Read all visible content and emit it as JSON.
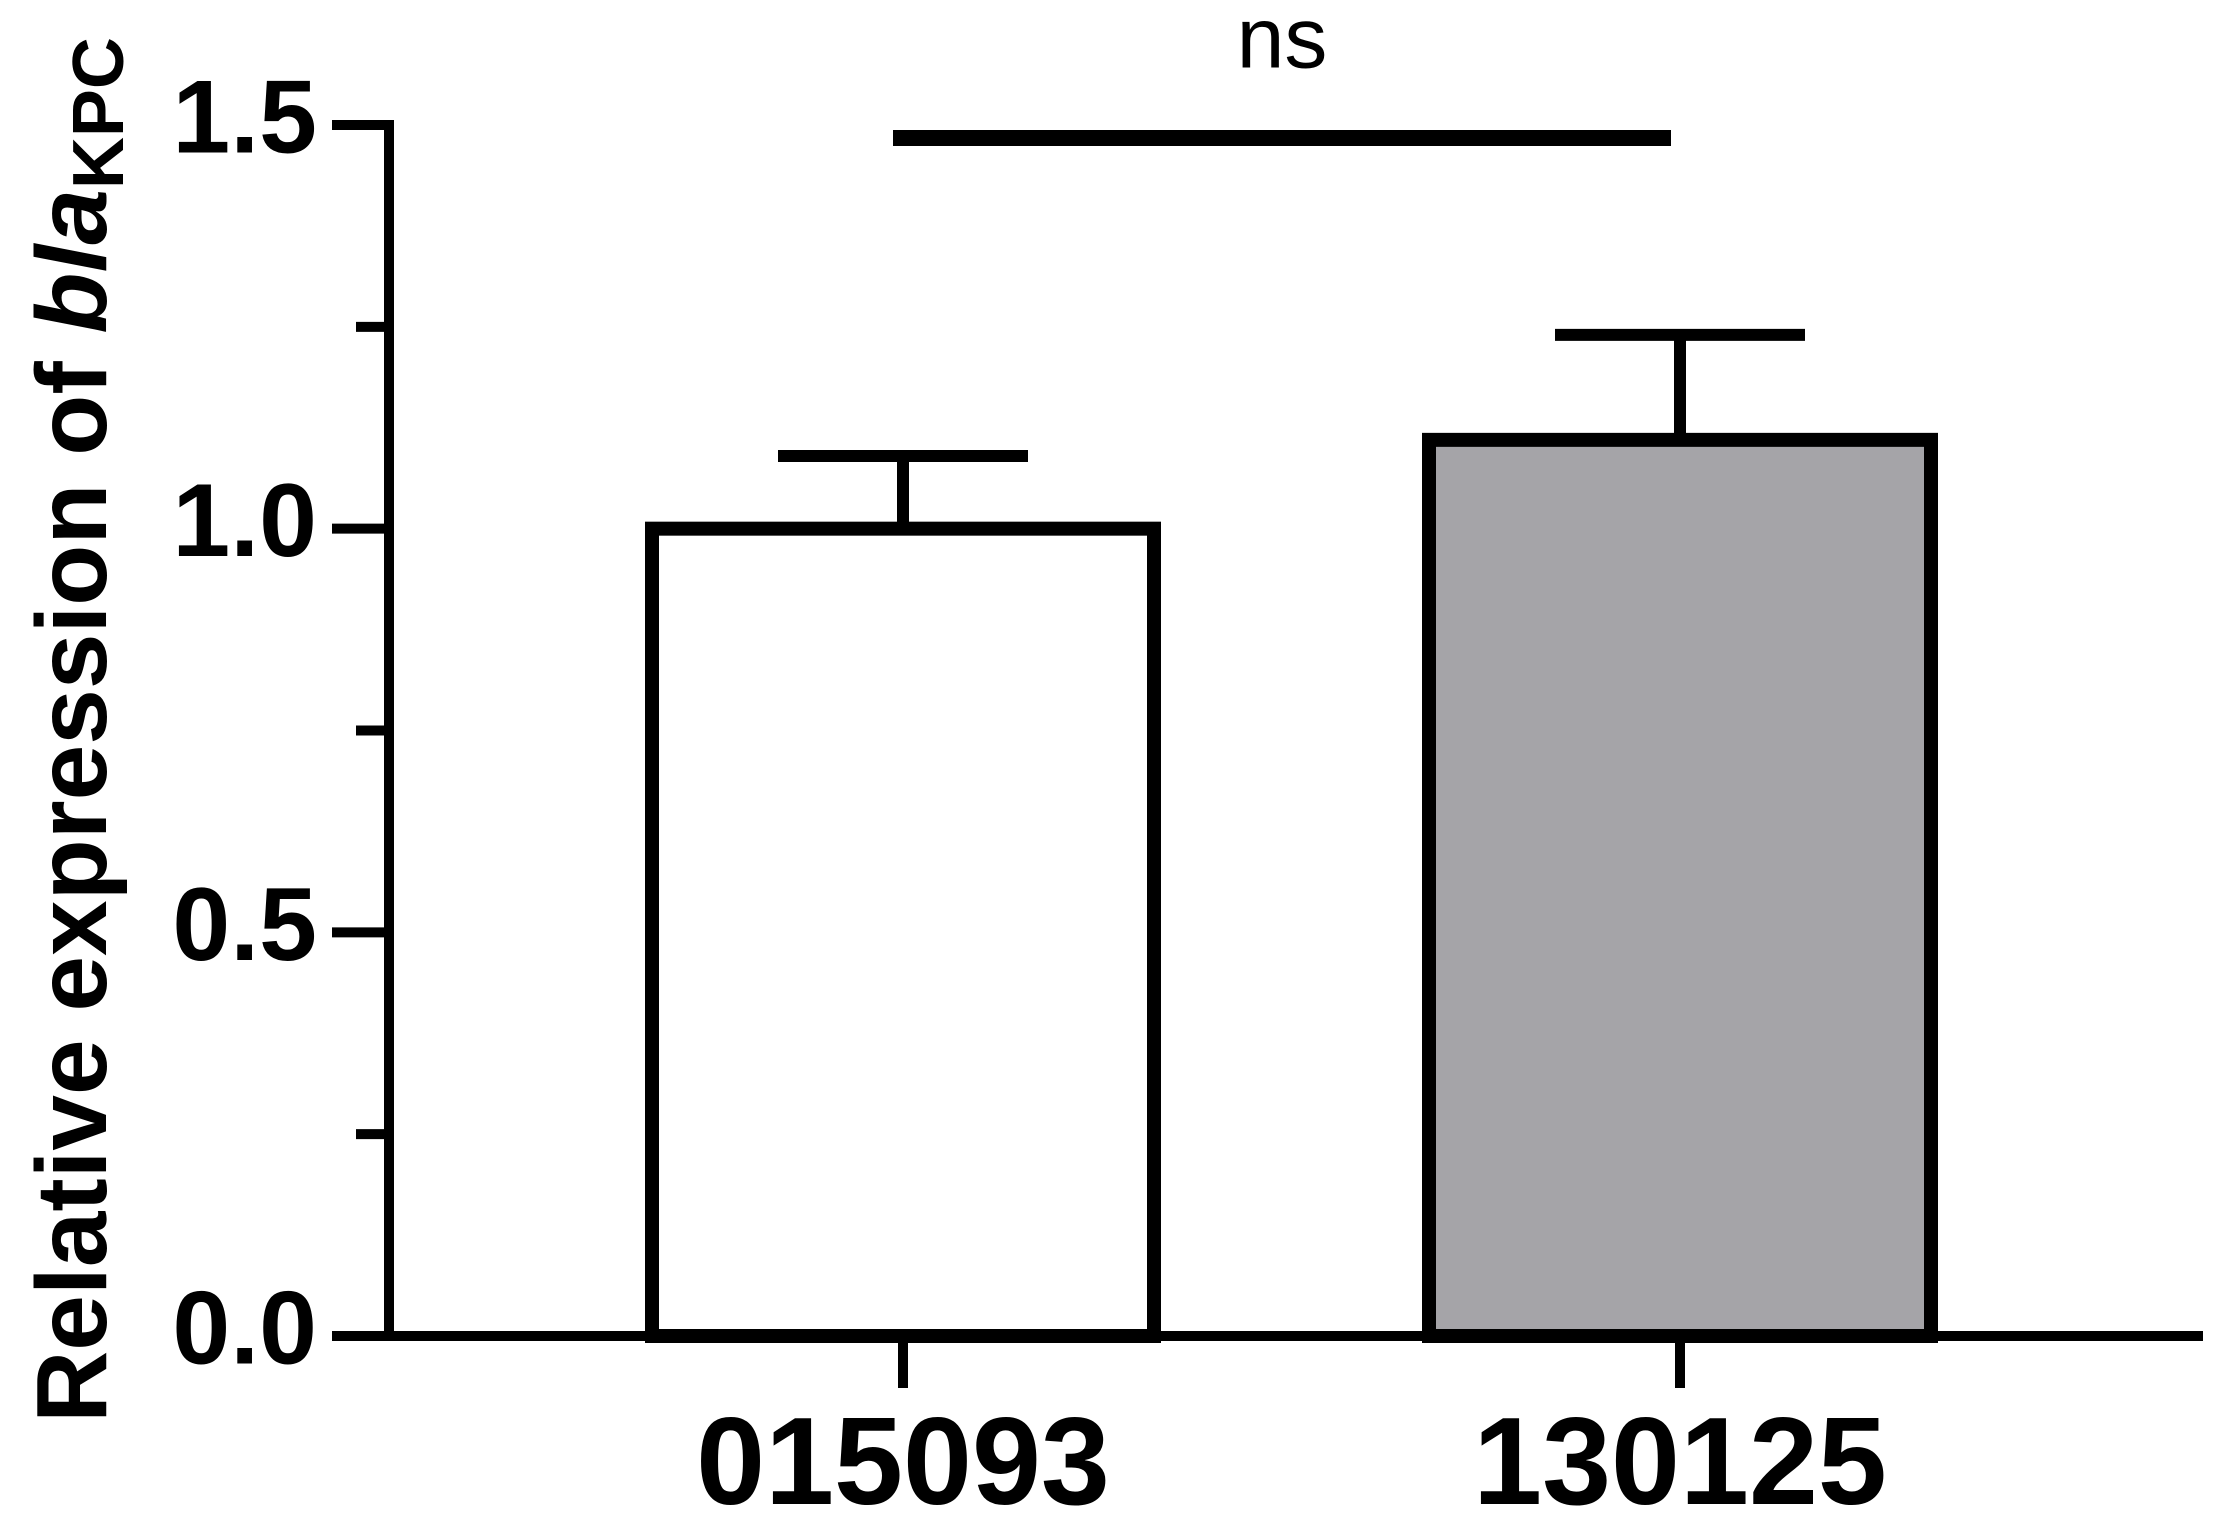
{
  "chart_data": {
    "type": "bar",
    "y_label": {
      "text": "Relative expression of ",
      "italic": "bla",
      "subscript": "KPC"
    },
    "categories": [
      "015093",
      "130125"
    ],
    "values": [
      1.0,
      1.11
    ],
    "errors": [
      0.09,
      0.13
    ],
    "colors": [
      "#ffffff",
      "#a5a4a8"
    ],
    "ylim": [
      0,
      1.5
    ],
    "yticks": [
      {
        "value": 0,
        "label": "0.0"
      },
      0.5,
      {
        "value": 1,
        "label": "1.0"
      },
      1.5
    ],
    "minor_yticks": [
      0.25,
      0.75,
      1.25
    ],
    "significance": {
      "label": "ns",
      "between": [
        0,
        1
      ]
    }
  }
}
